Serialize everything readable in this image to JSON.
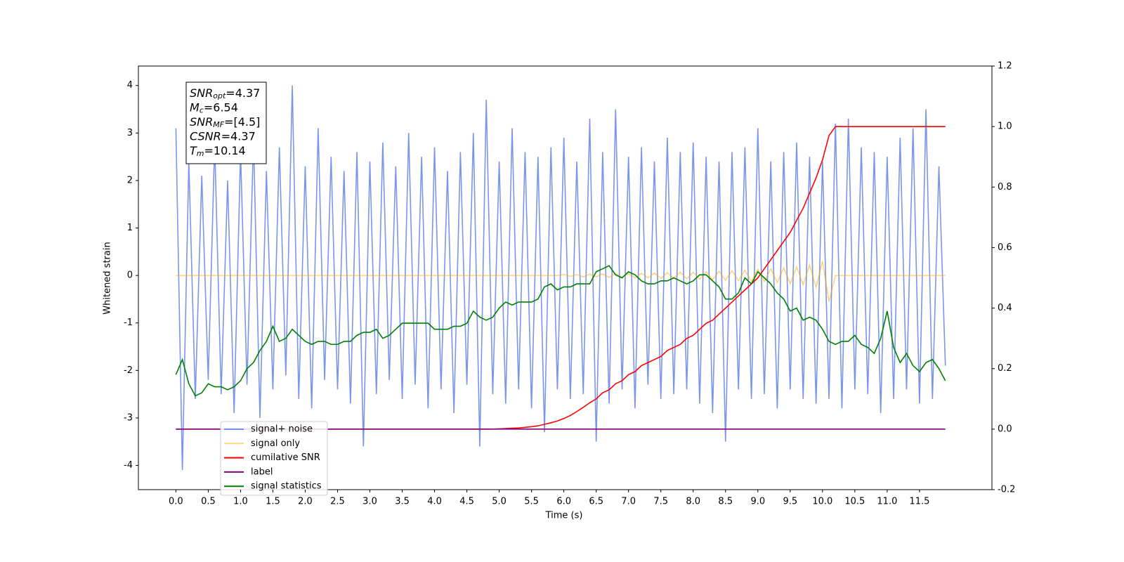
{
  "chart_data": {
    "type": "line",
    "xlabel": "Time (s)",
    "ylabel": "Whitened strain",
    "xlim": [
      -0.58,
      12.62
    ],
    "ylim": [
      -4.51,
      4.41
    ],
    "y2lim": [
      -0.2,
      1.2
    ],
    "xticks": [
      {
        "value": 0,
        "label": "0.0"
      },
      0.5,
      {
        "value": 1,
        "label": "1.0"
      },
      1.5,
      {
        "value": 2,
        "label": "2.0"
      },
      2.5,
      {
        "value": 3,
        "label": "3.0"
      },
      3.5,
      {
        "value": 4,
        "label": "4.0"
      },
      4.5,
      {
        "value": 5,
        "label": "5.0"
      },
      5.5,
      {
        "value": 6,
        "label": "6.0"
      },
      6.5,
      {
        "value": 7,
        "label": "7.0"
      },
      7.5,
      {
        "value": 8,
        "label": "8.0"
      },
      8.5,
      {
        "value": 9,
        "label": "9.0"
      },
      9.5,
      {
        "value": 10,
        "label": "10.0"
      },
      10.5,
      {
        "value": 11,
        "label": "11.0"
      },
      11.5
    ],
    "yticks": [
      -4,
      -3,
      -2,
      -1,
      0,
      1,
      2,
      3,
      4
    ],
    "y2ticks": [
      -0.2,
      {
        "value": 0,
        "label": "0.0"
      },
      0.2,
      0.4,
      0.6,
      0.8,
      {
        "value": 1,
        "label": "1.0"
      },
      1.2
    ],
    "legend_loc": "lower left",
    "annotation": [
      {
        "base": "SNR",
        "sub": "opt",
        "text": "=4.37"
      },
      {
        "base": "M",
        "sub": "c",
        "text": "=6.54"
      },
      {
        "base": "SNR",
        "sub": "MF",
        "text": "=[4.5]"
      },
      {
        "base": "CSNR",
        "text": "=4.37"
      },
      {
        "base": "T",
        "sub": "m",
        "text": "=10.14"
      }
    ],
    "x": [
      0,
      0.1,
      0.2,
      0.3,
      0.4,
      0.5,
      0.6,
      0.7,
      0.8,
      0.9,
      1,
      1.1,
      1.2,
      1.3,
      1.4,
      1.5,
      1.6,
      1.7,
      1.8,
      1.9,
      2,
      2.1,
      2.2,
      2.3,
      2.4,
      2.5,
      2.6,
      2.7,
      2.8,
      2.9,
      3,
      3.1,
      3.2,
      3.3,
      3.4,
      3.5,
      3.6,
      3.7,
      3.8,
      3.9,
      4,
      4.1,
      4.2,
      4.3,
      4.4,
      4.5,
      4.6,
      4.7,
      4.8,
      4.9,
      5,
      5.1,
      5.2,
      5.3,
      5.4,
      5.5,
      5.6,
      5.7,
      5.8,
      5.9,
      6,
      6.1,
      6.2,
      6.3,
      6.4,
      6.5,
      6.6,
      6.7,
      6.8,
      6.9,
      7,
      7.1,
      7.2,
      7.3,
      7.4,
      7.5,
      7.6,
      7.7,
      7.8,
      7.9,
      8,
      8.1,
      8.2,
      8.3,
      8.4,
      8.5,
      8.6,
      8.7,
      8.8,
      8.9,
      9,
      9.1,
      9.2,
      9.3,
      9.4,
      9.5,
      9.6,
      9.7,
      9.8,
      9.9,
      10,
      10.1,
      10.2,
      10.3,
      10.4,
      10.5,
      10.6,
      10.7,
      10.8,
      10.9,
      11,
      11.1,
      11.2,
      11.3,
      11.4,
      11.5,
      11.6,
      11.7,
      11.8,
      11.9
    ],
    "series": [
      {
        "name": "signal+ noise",
        "color": "#4169e1",
        "alpha": 0.7,
        "values": [
          3.1,
          -4.1,
          2.4,
          -2.6,
          2.1,
          -2.2,
          2.8,
          -2.5,
          2.0,
          -2.9,
          2.6,
          -2.3,
          2.9,
          -3.0,
          2.2,
          -2.4,
          2.7,
          -2.1,
          4.0,
          -2.6,
          2.3,
          -2.8,
          3.1,
          -2.2,
          2.5,
          -2.4,
          2.2,
          -2.7,
          2.6,
          -3.6,
          2.4,
          -2.5,
          2.8,
          -2.2,
          2.3,
          -2.6,
          3.0,
          -2.3,
          2.5,
          -2.8,
          2.7,
          -2.4,
          2.2,
          -2.9,
          2.6,
          -2.3,
          3.0,
          -3.6,
          3.7,
          -2.5,
          2.4,
          -2.7,
          3.1,
          -2.4,
          2.6,
          -2.8,
          2.5,
          -3.3,
          2.7,
          -2.4,
          2.9,
          -2.6,
          2.4,
          -2.5,
          3.3,
          -3.5,
          2.6,
          -2.7,
          3.5,
          -2.4,
          2.5,
          -2.8,
          2.7,
          -2.3,
          2.4,
          -2.6,
          2.9,
          -2.5,
          2.6,
          -2.4,
          2.8,
          -2.7,
          2.5,
          -2.9,
          2.4,
          -3.5,
          2.6,
          -2.4,
          2.7,
          -2.6,
          3.1,
          -2.5,
          2.4,
          -2.8,
          2.6,
          -2.4,
          2.8,
          -2.6,
          2.5,
          -2.7,
          2.4,
          -2.6,
          3.2,
          -2.8,
          3.3,
          -2.4,
          2.7,
          -2.5,
          2.6,
          -2.9,
          2.5,
          -2.6,
          2.9,
          -2.4,
          3.1,
          -2.7,
          3.5,
          -2.6,
          2.3,
          -1.9
        ]
      },
      {
        "name": "signal only",
        "color": "#ffa500",
        "alpha": 0.5,
        "values": [
          0,
          0,
          0,
          0,
          0,
          0,
          0,
          0,
          0,
          0,
          0,
          0,
          0,
          0,
          0,
          0,
          0,
          0,
          0,
          0,
          0,
          0,
          0,
          0,
          0,
          0,
          0,
          0,
          0,
          0,
          0,
          0,
          0,
          0,
          0,
          0,
          0,
          0,
          0,
          0,
          0,
          0,
          0,
          0,
          0,
          0,
          0,
          0,
          0,
          0,
          0,
          0,
          0,
          0,
          0,
          0,
          0,
          0,
          0,
          0,
          0.02,
          -0.02,
          0.02,
          -0.03,
          0.03,
          -0.03,
          0.03,
          -0.04,
          0.04,
          -0.04,
          0.04,
          -0.05,
          0.05,
          -0.05,
          0.05,
          -0.06,
          0.06,
          -0.06,
          0.07,
          -0.07,
          0.07,
          -0.08,
          0.08,
          -0.09,
          0.09,
          -0.1,
          0.1,
          -0.11,
          0.11,
          -0.12,
          0.13,
          -0.13,
          0.14,
          -0.15,
          0.16,
          -0.17,
          0.18,
          -0.2,
          0.22,
          -0.25,
          0.3,
          -0.55,
          0,
          0,
          0,
          0,
          0,
          0,
          0,
          0,
          0,
          0,
          0,
          0,
          0,
          0,
          0,
          0,
          0,
          0
        ]
      },
      {
        "name": "cumilative SNR",
        "color": "#ff0000",
        "alpha": 1,
        "axis": "y2",
        "values": [
          0,
          0,
          0,
          0,
          0,
          0,
          0,
          0,
          0,
          0,
          0,
          0,
          0,
          0,
          0,
          0,
          0,
          0,
          0,
          0,
          0,
          0,
          0,
          0,
          0,
          0,
          0,
          0,
          0,
          0,
          0,
          0,
          0,
          0,
          0,
          0,
          0,
          0,
          0,
          0,
          0,
          0,
          0,
          0,
          0,
          0,
          0,
          0,
          0,
          0,
          0.001,
          0.002,
          0.003,
          0.004,
          0.006,
          0.008,
          0.011,
          0.016,
          0.021,
          0.027,
          0.035,
          0.045,
          0.058,
          0.072,
          0.087,
          0.1,
          0.12,
          0.13,
          0.15,
          0.16,
          0.18,
          0.19,
          0.21,
          0.22,
          0.23,
          0.24,
          0.26,
          0.27,
          0.28,
          0.3,
          0.31,
          0.33,
          0.35,
          0.36,
          0.38,
          0.4,
          0.42,
          0.44,
          0.46,
          0.48,
          0.5,
          0.53,
          0.56,
          0.59,
          0.62,
          0.65,
          0.69,
          0.73,
          0.78,
          0.83,
          0.89,
          0.97,
          1,
          1,
          1,
          1,
          1,
          1,
          1,
          1,
          1,
          1,
          1,
          1,
          1,
          1,
          1,
          1,
          1,
          1
        ]
      },
      {
        "name": "label",
        "color": "#800080",
        "alpha": 1,
        "axis": "y2",
        "values": [
          0,
          0,
          0,
          0,
          0,
          0,
          0,
          0,
          0,
          0,
          0,
          0,
          0,
          0,
          0,
          0,
          0,
          0,
          0,
          0,
          0,
          0,
          0,
          0,
          0,
          0,
          0,
          0,
          0,
          0,
          0,
          0,
          0,
          0,
          0,
          0,
          0,
          0,
          0,
          0,
          0,
          0,
          0,
          0,
          0,
          0,
          0,
          0,
          0,
          0,
          0,
          0,
          0,
          0,
          0,
          0,
          0,
          0,
          0,
          0,
          0,
          0,
          0,
          0,
          0,
          0,
          0,
          0,
          0,
          0,
          0,
          0,
          0,
          0,
          0,
          0,
          0,
          0,
          0,
          0,
          0,
          0,
          0,
          0,
          0,
          0,
          0,
          0,
          0,
          0,
          0,
          0,
          0,
          0,
          0,
          0,
          0,
          0,
          0,
          0,
          0,
          0,
          0,
          0,
          0,
          0,
          0,
          0,
          0,
          0,
          0,
          0,
          0,
          0,
          0,
          0,
          0,
          0,
          0,
          0
        ]
      },
      {
        "name": "signal statistics",
        "color": "#008000",
        "alpha": 1,
        "axis": "y2",
        "values": [
          0.18,
          0.23,
          0.15,
          0.11,
          0.12,
          0.15,
          0.14,
          0.14,
          0.13,
          0.14,
          0.16,
          0.2,
          0.22,
          0.26,
          0.29,
          0.34,
          0.29,
          0.3,
          0.33,
          0.31,
          0.29,
          0.28,
          0.29,
          0.29,
          0.28,
          0.28,
          0.29,
          0.29,
          0.31,
          0.32,
          0.32,
          0.33,
          0.3,
          0.31,
          0.33,
          0.35,
          0.35,
          0.35,
          0.35,
          0.35,
          0.33,
          0.33,
          0.33,
          0.34,
          0.34,
          0.35,
          0.39,
          0.37,
          0.36,
          0.37,
          0.4,
          0.42,
          0.41,
          0.42,
          0.42,
          0.42,
          0.43,
          0.47,
          0.48,
          0.46,
          0.47,
          0.47,
          0.48,
          0.48,
          0.48,
          0.52,
          0.53,
          0.54,
          0.51,
          0.5,
          0.52,
          0.51,
          0.49,
          0.48,
          0.48,
          0.49,
          0.49,
          0.5,
          0.49,
          0.48,
          0.49,
          0.51,
          0.51,
          0.49,
          0.47,
          0.43,
          0.43,
          0.45,
          0.5,
          0.48,
          0.52,
          0.5,
          0.48,
          0.45,
          0.43,
          0.39,
          0.4,
          0.36,
          0.37,
          0.36,
          0.33,
          0.29,
          0.28,
          0.29,
          0.29,
          0.31,
          0.28,
          0.27,
          0.25,
          0.3,
          0.39,
          0.27,
          0.22,
          0.25,
          0.21,
          0.19,
          0.22,
          0.23,
          0.2,
          0.16
        ]
      }
    ]
  }
}
